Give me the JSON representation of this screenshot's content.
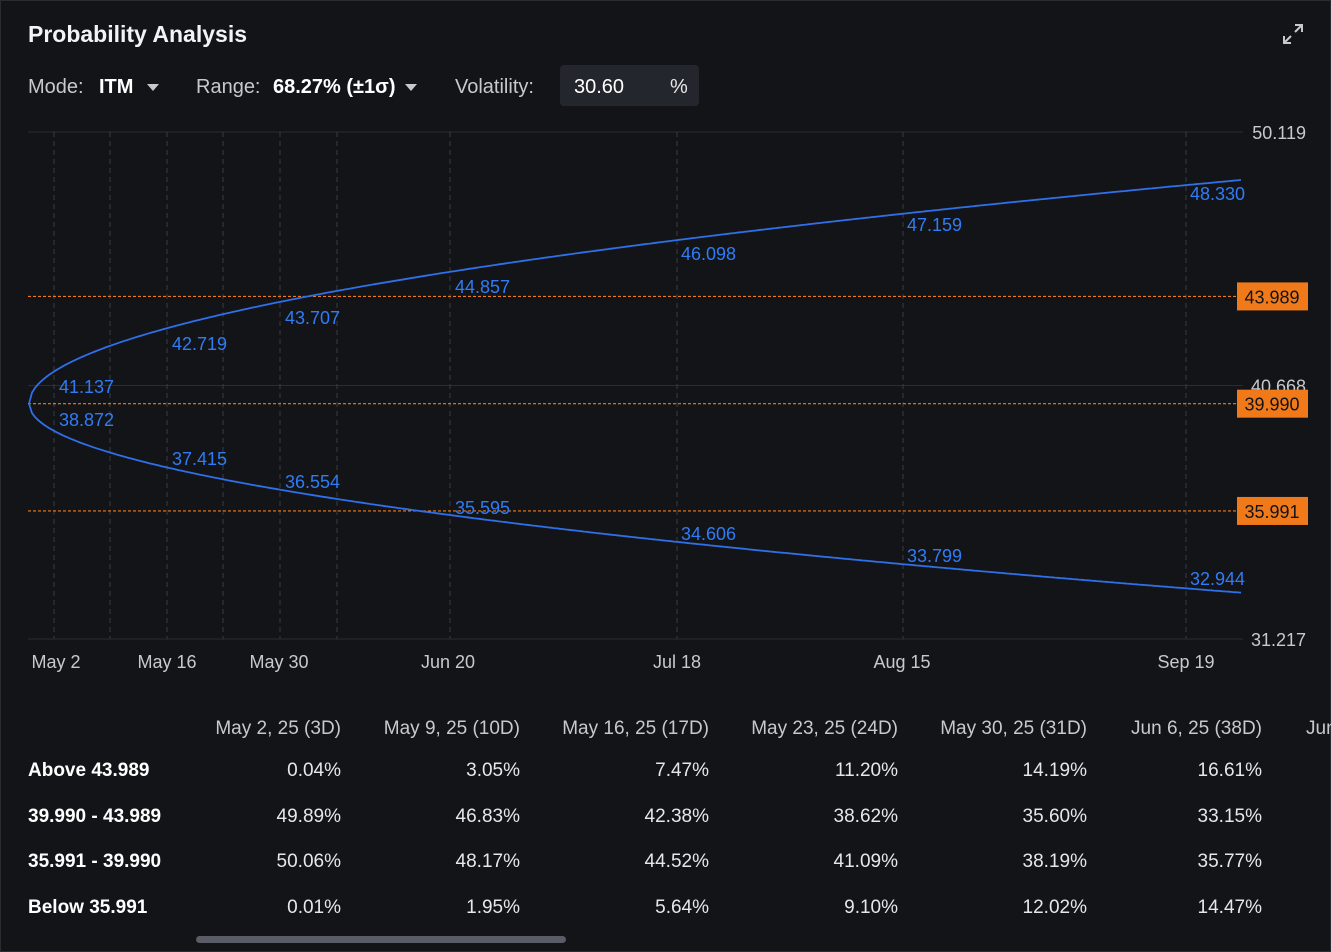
{
  "title": "Probability Analysis",
  "icons": {
    "expand": "expand-icon",
    "mode_caret": "caret-down-icon",
    "range_caret": "caret-down-icon"
  },
  "toolbar": {
    "mode_label": "Mode:",
    "mode_value": "ITM",
    "range_label": "Range:",
    "range_value": "68.27% (±1σ)",
    "volatility_label": "Volatility:",
    "volatility_value": "30.60",
    "volatility_unit": "%"
  },
  "colors": {
    "curve": "#2f6fe8",
    "level": "#f07a1a",
    "background": "#131418"
  },
  "chart_data": {
    "type": "line",
    "y_axis_labels": [
      "50.119",
      "40.668",
      "31.217"
    ],
    "ylim": [
      31.217,
      50.119
    ],
    "x_axis_labels": [
      "May 2",
      "May 16",
      "May 30",
      "Jun 20",
      "Jul 18",
      "Aug 15",
      "Sep 19"
    ],
    "levels": [
      "43.989",
      "39.990",
      "35.991"
    ],
    "series": [
      {
        "values": [
          41.137,
          42.719,
          43.707,
          44.857,
          46.098,
          47.159,
          48.33
        ]
      },
      {
        "values": [
          38.872,
          37.415,
          36.554,
          35.595,
          34.606,
          33.799,
          32.944
        ]
      }
    ]
  },
  "table": {
    "headers": [
      "May 2, 25 (3D)",
      "May 9, 25 (10D)",
      "May 16, 25 (17D)",
      "May 23, 25 (24D)",
      "May 30, 25 (31D)",
      "Jun 6, 25 (38D)",
      "Jun"
    ],
    "rows": [
      {
        "label": "Above 43.989",
        "values": [
          "0.04%",
          "3.05%",
          "7.47%",
          "11.20%",
          "14.19%",
          "16.61%"
        ]
      },
      {
        "label": "39.990 - 43.989",
        "values": [
          "49.89%",
          "46.83%",
          "42.38%",
          "38.62%",
          "35.60%",
          "33.15%"
        ]
      },
      {
        "label": "35.991 - 39.990",
        "values": [
          "50.06%",
          "48.17%",
          "44.52%",
          "41.09%",
          "38.19%",
          "35.77%"
        ]
      },
      {
        "label": "Below 35.991",
        "values": [
          "0.01%",
          "1.95%",
          "5.64%",
          "9.10%",
          "12.02%",
          "14.47%"
        ]
      }
    ]
  }
}
